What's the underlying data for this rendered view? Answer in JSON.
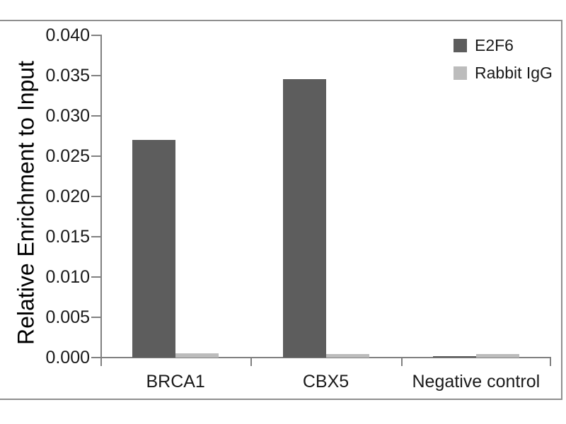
{
  "chart_data": {
    "type": "bar",
    "title": "",
    "categories": [
      "BRCA1",
      "CBX5",
      "Negative control"
    ],
    "series": [
      {
        "name": "E2F6",
        "color": "#5d5d5d",
        "values": [
          0.027,
          0.0346,
          0.0001
        ]
      },
      {
        "name": "Rabbit IgG",
        "color": "#bcbcbc",
        "values": [
          0.0005,
          0.0004,
          0.0004
        ]
      }
    ],
    "xlabel": "",
    "ylabel": "Relative Enrichment to Input",
    "ylim": [
      0,
      0.04
    ],
    "ytick_step": 0.005,
    "ytick_decimals": 3,
    "ytick_labels": [
      "0.000",
      "0.005",
      "0.010",
      "0.015",
      "0.020",
      "0.025",
      "0.030",
      "0.035",
      "0.040"
    ],
    "legend_position": "top-right",
    "grid": false
  },
  "colors": {
    "axis": "#808080",
    "frame": "#8f8f8f",
    "text": "#1a1a1a",
    "background": "#ffffff"
  }
}
